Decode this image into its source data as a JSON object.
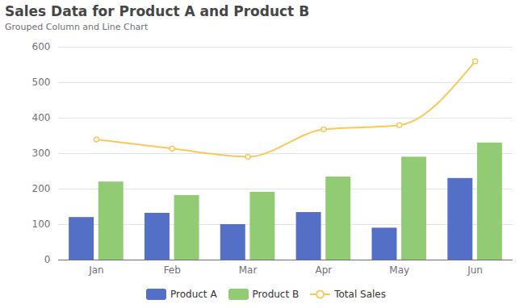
{
  "chart_data": {
    "type": "bar",
    "title": "Sales Data for Product A and Product B",
    "subtitle": "Grouped Column and Line Chart",
    "categories": [
      "Jan",
      "Feb",
      "Mar",
      "Apr",
      "May",
      "Jun"
    ],
    "series": [
      {
        "name": "Product A",
        "type": "bar",
        "color": "#5470c6",
        "values": [
          120,
          132,
          100,
          134,
          90,
          230
        ]
      },
      {
        "name": "Product B",
        "type": "bar",
        "color": "#91cc75",
        "values": [
          220,
          182,
          191,
          234,
          290,
          330
        ]
      },
      {
        "name": "Total Sales",
        "type": "line",
        "color": "#fac858",
        "marker": "circle",
        "values": [
          340,
          314,
          291,
          368,
          380,
          560
        ]
      }
    ],
    "ylim": [
      0,
      600
    ],
    "yticks": [
      0,
      100,
      200,
      300,
      400,
      500,
      600
    ],
    "grid": true,
    "legend": "bottom"
  }
}
